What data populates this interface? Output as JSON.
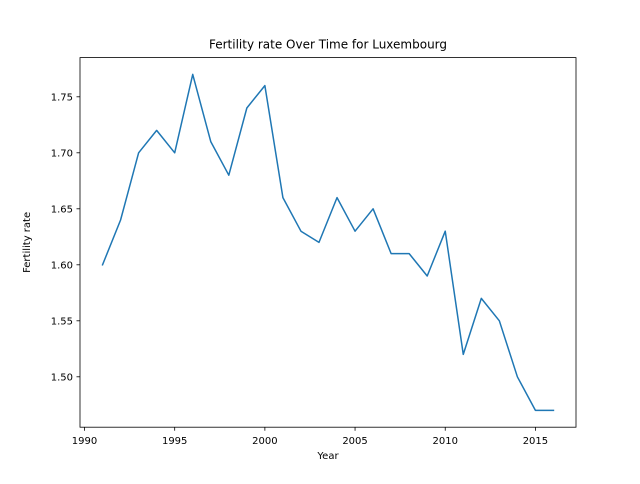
{
  "chart_data": {
    "type": "line",
    "title": "Fertility rate Over Time for Luxembourg",
    "xlabel": "Year",
    "ylabel": "Fertility rate",
    "xlim": [
      1989.75,
      2017.25
    ],
    "ylim": [
      1.455,
      1.785
    ],
    "xticks": [
      1990,
      1995,
      2000,
      2005,
      2010,
      2015
    ],
    "yticks": [
      1.5,
      1.55,
      1.6,
      1.65,
      1.7,
      1.75
    ],
    "ytick_labels": [
      "1.50",
      "1.55",
      "1.60",
      "1.65",
      "1.70",
      "1.75"
    ],
    "grid": false,
    "series": [
      {
        "color": "#1f77b4",
        "x": [
          1991,
          1992,
          1993,
          1994,
          1995,
          1996,
          1997,
          1998,
          1999,
          2000,
          2001,
          2002,
          2003,
          2004,
          2005,
          2006,
          2007,
          2008,
          2009,
          2010,
          2011,
          2012,
          2013,
          2014,
          2015,
          2016
        ],
        "y": [
          1.6,
          1.64,
          1.7,
          1.72,
          1.7,
          1.77,
          1.71,
          1.68,
          1.74,
          1.76,
          1.66,
          1.63,
          1.62,
          1.66,
          1.63,
          1.65,
          1.61,
          1.61,
          1.59,
          1.63,
          1.52,
          1.57,
          1.55,
          1.5,
          1.47,
          1.47
        ]
      }
    ]
  }
}
